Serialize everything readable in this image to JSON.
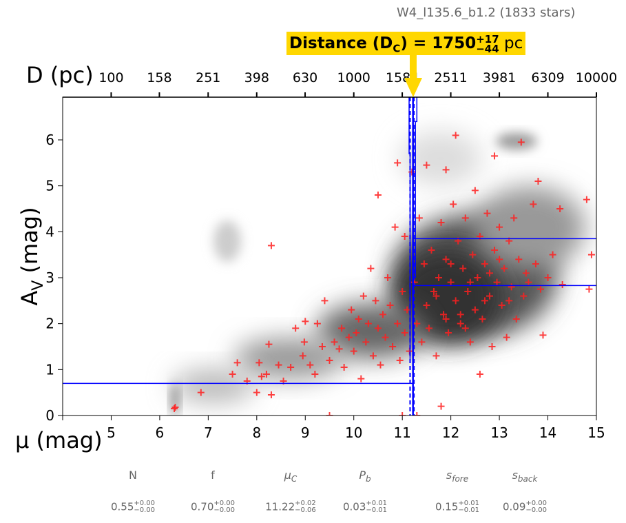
{
  "title": "W4_l135.6_b1.2 (1833 stars)",
  "distance_label": {
    "prefix": "Distance (D",
    "sub": "C",
    "mid": ") = 1750",
    "plus": "+17",
    "minus": "−44",
    "unit": "pc"
  },
  "colors": {
    "points": "#ff2020",
    "model": "#0000ff",
    "highlight": "#ffd700"
  },
  "chart_data": {
    "type": "scatter",
    "xlabel": "μ (mag)",
    "ylabel": "A_V (mag)",
    "ylabel_main": "A",
    "ylabel_sub": "V",
    "ylabel_tail": " (mag)",
    "top_xlabel": "D (pc)",
    "xlim": [
      4,
      15
    ],
    "ylim": [
      0,
      6.93
    ],
    "xticks": [
      4,
      5,
      6,
      7,
      8,
      9,
      10,
      11,
      12,
      13,
      14,
      15
    ],
    "xtick_labels": [
      "",
      "5",
      "6",
      "7",
      "8",
      "9",
      "10",
      "11",
      "12",
      "13",
      "14",
      "15"
    ],
    "yticks": [
      0,
      1,
      2,
      3,
      4,
      5,
      6
    ],
    "top_ticks": [
      100,
      158,
      251,
      398,
      630,
      1000,
      1584,
      2511,
      3981,
      6309,
      10000
    ],
    "model": {
      "mu_c": 11.22,
      "mu_c_lo": 11.16,
      "mu_c_hi": 11.24,
      "foreground_av": 0.7,
      "background_av_lines": [
        2.83,
        3.85
      ]
    },
    "points": [
      [
        6.3,
        0.15
      ],
      [
        6.32,
        0.18
      ],
      [
        6.85,
        0.5
      ],
      [
        7.5,
        0.9
      ],
      [
        7.6,
        1.15
      ],
      [
        7.8,
        0.75
      ],
      [
        8.0,
        0.5
      ],
      [
        8.05,
        1.15
      ],
      [
        8.1,
        0.85
      ],
      [
        8.2,
        0.9
      ],
      [
        8.25,
        1.55
      ],
      [
        8.3,
        0.45
      ],
      [
        8.3,
        3.7
      ],
      [
        8.45,
        1.1
      ],
      [
        8.55,
        0.75
      ],
      [
        8.8,
        1.9
      ],
      [
        8.7,
        1.05
      ],
      [
        8.95,
        1.3
      ],
      [
        8.98,
        1.6
      ],
      [
        9.0,
        2.05
      ],
      [
        9.1,
        1.1
      ],
      [
        9.2,
        0.9
      ],
      [
        9.25,
        2.0
      ],
      [
        9.35,
        1.5
      ],
      [
        9.4,
        2.5
      ],
      [
        9.5,
        1.2
      ],
      [
        9.6,
        1.6
      ],
      [
        9.7,
        1.45
      ],
      [
        9.75,
        1.9
      ],
      [
        9.8,
        1.05
      ],
      [
        9.9,
        1.7
      ],
      [
        9.95,
        2.3
      ],
      [
        10.0,
        1.4
      ],
      [
        10.05,
        1.8
      ],
      [
        10.1,
        2.1
      ],
      [
        10.15,
        0.8
      ],
      [
        10.2,
        2.6
      ],
      [
        10.25,
        1.6
      ],
      [
        10.3,
        2.0
      ],
      [
        10.35,
        3.2
      ],
      [
        10.4,
        1.3
      ],
      [
        10.45,
        2.5
      ],
      [
        10.5,
        1.9
      ],
      [
        10.5,
        4.8
      ],
      [
        10.55,
        1.1
      ],
      [
        10.6,
        2.2
      ],
      [
        10.65,
        1.7
      ],
      [
        10.7,
        3.0
      ],
      [
        10.75,
        2.4
      ],
      [
        10.8,
        1.5
      ],
      [
        10.85,
        4.1
      ],
      [
        10.9,
        2.0
      ],
      [
        10.9,
        5.5
      ],
      [
        10.95,
        1.2
      ],
      [
        11.0,
        2.7
      ],
      [
        11.05,
        1.8
      ],
      [
        11.05,
        3.9
      ],
      [
        11.1,
        2.3
      ],
      [
        11.15,
        1.4
      ],
      [
        11.2,
        5.3
      ],
      [
        11.25,
        2.9
      ],
      [
        11.3,
        2.0
      ],
      [
        11.35,
        4.3
      ],
      [
        11.4,
        1.6
      ],
      [
        11.45,
        3.3
      ],
      [
        11.5,
        5.45
      ],
      [
        11.5,
        2.4
      ],
      [
        11.55,
        1.9
      ],
      [
        11.6,
        3.6
      ],
      [
        11.65,
        2.7
      ],
      [
        11.7,
        1.3
      ],
      [
        11.75,
        3.0
      ],
      [
        11.8,
        4.2
      ],
      [
        11.85,
        2.2
      ],
      [
        11.9,
        3.4
      ],
      [
        11.95,
        1.8
      ],
      [
        11.9,
        5.35
      ],
      [
        12.0,
        2.9
      ],
      [
        12.05,
        4.6
      ],
      [
        12.1,
        2.5
      ],
      [
        12.1,
        6.1
      ],
      [
        12.15,
        3.8
      ],
      [
        12.2,
        2.0
      ],
      [
        12.25,
        3.2
      ],
      [
        12.3,
        4.3
      ],
      [
        12.35,
        2.7
      ],
      [
        12.4,
        1.6
      ],
      [
        12.45,
        3.5
      ],
      [
        12.5,
        2.3
      ],
      [
        12.5,
        4.9
      ],
      [
        12.55,
        3.0
      ],
      [
        12.6,
        3.9
      ],
      [
        12.65,
        2.1
      ],
      [
        12.7,
        3.3
      ],
      [
        12.75,
        4.4
      ],
      [
        12.8,
        2.6
      ],
      [
        12.85,
        1.5
      ],
      [
        12.9,
        3.6
      ],
      [
        12.9,
        5.65
      ],
      [
        12.95,
        2.9
      ],
      [
        13.0,
        4.1
      ],
      [
        13.05,
        2.4
      ],
      [
        13.1,
        3.2
      ],
      [
        13.15,
        1.7
      ],
      [
        13.2,
        3.8
      ],
      [
        13.25,
        2.8
      ],
      [
        13.3,
        4.3
      ],
      [
        13.35,
        2.1
      ],
      [
        13.4,
        3.4
      ],
      [
        13.45,
        5.95
      ],
      [
        13.5,
        2.6
      ],
      [
        13.55,
        3.1
      ],
      [
        13.6,
        2.9
      ],
      [
        13.7,
        4.6
      ],
      [
        13.75,
        3.3
      ],
      [
        13.8,
        5.1
      ],
      [
        13.85,
        2.75
      ],
      [
        13.9,
        1.75
      ],
      [
        14.0,
        3.0
      ],
      [
        14.1,
        3.5
      ],
      [
        14.25,
        4.5
      ],
      [
        14.3,
        2.85
      ],
      [
        14.8,
        4.7
      ],
      [
        14.85,
        2.75
      ],
      [
        14.9,
        3.5
      ],
      [
        11.8,
        0.2
      ],
      [
        12.6,
        0.9
      ],
      [
        11.3,
        0.0
      ],
      [
        9.5,
        0.0
      ],
      [
        11.0,
        0.0
      ],
      [
        12.2,
        2.2
      ],
      [
        12.4,
        2.9
      ],
      [
        12.0,
        3.3
      ],
      [
        12.7,
        2.5
      ],
      [
        13.0,
        3.4
      ],
      [
        11.7,
        2.6
      ],
      [
        12.3,
        1.9
      ],
      [
        12.8,
        3.1
      ],
      [
        13.2,
        2.5
      ],
      [
        11.9,
        2.1
      ]
    ]
  },
  "params": {
    "labels": [
      {
        "main": "N",
        "sub": ""
      },
      {
        "main": "f",
        "sub": ""
      },
      {
        "main": "μ",
        "sub": "C"
      },
      {
        "main": "P",
        "sub": "b"
      },
      {
        "main": "s",
        "sub": "fore"
      },
      {
        "main": "s",
        "sub": "back"
      }
    ],
    "values": [
      {
        "v": "0.55",
        "plus": "+0.00",
        "minus": "−0.00"
      },
      {
        "v": "0.70",
        "plus": "+0.00",
        "minus": "−0.00"
      },
      {
        "v": "11.22",
        "plus": "+0.02",
        "minus": "−0.06"
      },
      {
        "v": "0.03",
        "plus": "+0.01",
        "minus": "−0.01"
      },
      {
        "v": "0.15",
        "plus": "+0.01",
        "minus": "−0.01"
      },
      {
        "v": "0.09",
        "plus": "+0.00",
        "minus": "−0.00"
      }
    ]
  }
}
